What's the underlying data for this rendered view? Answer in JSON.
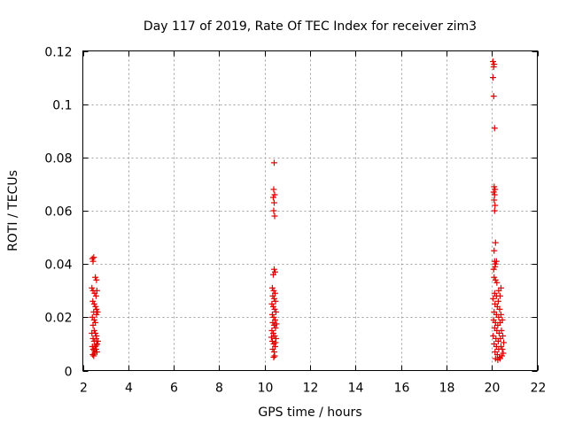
{
  "chart_data": {
    "type": "scatter",
    "title": "Day 117 of 2019, Rate Of TEC Index for receiver zim3",
    "xlabel": "GPS time / hours",
    "ylabel": "ROTI / TECUs",
    "xlim": [
      2,
      22
    ],
    "ylim": [
      0,
      0.12
    ],
    "xticks": [
      2,
      4,
      6,
      8,
      10,
      12,
      14,
      16,
      18,
      20,
      22
    ],
    "yticks": [
      0,
      0.02,
      0.04,
      0.06,
      0.08,
      0.1,
      0.12
    ],
    "xtick_labels": [
      "2",
      "4",
      "6",
      "8",
      "10",
      "12",
      "14",
      "16",
      "18",
      "20",
      "22"
    ],
    "ytick_labels": [
      "0",
      "0.02",
      "0.04",
      "0.06",
      "0.08",
      "0.1",
      "0.12"
    ],
    "grid": true,
    "marker": "+",
    "color": "#e00000",
    "series": [
      {
        "name": "ROTI",
        "points": [
          [
            2.42,
            0.042
          ],
          [
            2.45,
            0.041
          ],
          [
            2.48,
            0.0425
          ],
          [
            2.55,
            0.035
          ],
          [
            2.6,
            0.034
          ],
          [
            2.4,
            0.031
          ],
          [
            2.45,
            0.03
          ],
          [
            2.52,
            0.029
          ],
          [
            2.58,
            0.028
          ],
          [
            2.62,
            0.03
          ],
          [
            2.44,
            0.026
          ],
          [
            2.5,
            0.025
          ],
          [
            2.56,
            0.024
          ],
          [
            2.6,
            0.023
          ],
          [
            2.48,
            0.022
          ],
          [
            2.42,
            0.02
          ],
          [
            2.5,
            0.019
          ],
          [
            2.55,
            0.018
          ],
          [
            2.6,
            0.021
          ],
          [
            2.65,
            0.022
          ],
          [
            2.45,
            0.017
          ],
          [
            2.5,
            0.015
          ],
          [
            2.55,
            0.014
          ],
          [
            2.6,
            0.013
          ],
          [
            2.4,
            0.014
          ],
          [
            2.45,
            0.012
          ],
          [
            2.5,
            0.011
          ],
          [
            2.58,
            0.012
          ],
          [
            2.62,
            0.01
          ],
          [
            2.66,
            0.011
          ],
          [
            2.42,
            0.009
          ],
          [
            2.46,
            0.008
          ],
          [
            2.5,
            0.0075
          ],
          [
            2.54,
            0.009
          ],
          [
            2.58,
            0.008
          ],
          [
            2.62,
            0.007
          ],
          [
            2.44,
            0.006
          ],
          [
            2.48,
            0.0055
          ],
          [
            2.52,
            0.0065
          ],
          [
            2.6,
            0.0095
          ],
          [
            10.42,
            0.078
          ],
          [
            10.4,
            0.068
          ],
          [
            10.44,
            0.066
          ],
          [
            10.38,
            0.065
          ],
          [
            10.42,
            0.063
          ],
          [
            10.4,
            0.06
          ],
          [
            10.44,
            0.058
          ],
          [
            10.42,
            0.038
          ],
          [
            10.46,
            0.037
          ],
          [
            10.38,
            0.036
          ],
          [
            10.34,
            0.031
          ],
          [
            10.4,
            0.03
          ],
          [
            10.46,
            0.029
          ],
          [
            10.36,
            0.028
          ],
          [
            10.42,
            0.027
          ],
          [
            10.48,
            0.026
          ],
          [
            10.32,
            0.025
          ],
          [
            10.38,
            0.024
          ],
          [
            10.44,
            0.023
          ],
          [
            10.5,
            0.022
          ],
          [
            10.34,
            0.021
          ],
          [
            10.4,
            0.02
          ],
          [
            10.46,
            0.019
          ],
          [
            10.36,
            0.018
          ],
          [
            10.42,
            0.017
          ],
          [
            10.48,
            0.016
          ],
          [
            10.32,
            0.015
          ],
          [
            10.38,
            0.014
          ],
          [
            10.44,
            0.013
          ],
          [
            10.5,
            0.012
          ],
          [
            10.34,
            0.011
          ],
          [
            10.4,
            0.01
          ],
          [
            10.46,
            0.009
          ],
          [
            10.36,
            0.008
          ],
          [
            10.42,
            0.007
          ],
          [
            10.44,
            0.0055
          ],
          [
            10.4,
            0.005
          ],
          [
            10.48,
            0.0105
          ],
          [
            10.3,
            0.0125
          ],
          [
            10.52,
            0.0175
          ],
          [
            20.05,
            0.116
          ],
          [
            20.1,
            0.115
          ],
          [
            20.08,
            0.114
          ],
          [
            20.05,
            0.11
          ],
          [
            20.08,
            0.103
          ],
          [
            20.12,
            0.091
          ],
          [
            20.1,
            0.069
          ],
          [
            20.14,
            0.068
          ],
          [
            20.08,
            0.067
          ],
          [
            20.12,
            0.066
          ],
          [
            20.1,
            0.064
          ],
          [
            20.14,
            0.062
          ],
          [
            20.12,
            0.06
          ],
          [
            20.16,
            0.048
          ],
          [
            20.1,
            0.045
          ],
          [
            20.12,
            0.041
          ],
          [
            20.16,
            0.04
          ],
          [
            20.2,
            0.041
          ],
          [
            20.14,
            0.039
          ],
          [
            20.08,
            0.038
          ],
          [
            20.1,
            0.035
          ],
          [
            20.16,
            0.034
          ],
          [
            20.22,
            0.033
          ],
          [
            20.4,
            0.031
          ],
          [
            20.3,
            0.03
          ],
          [
            20.12,
            0.029
          ],
          [
            20.2,
            0.028
          ],
          [
            20.36,
            0.028
          ],
          [
            20.06,
            0.027
          ],
          [
            20.28,
            0.026
          ],
          [
            20.14,
            0.025
          ],
          [
            20.24,
            0.024
          ],
          [
            20.34,
            0.023
          ],
          [
            20.1,
            0.022
          ],
          [
            20.2,
            0.021
          ],
          [
            20.3,
            0.02
          ],
          [
            20.4,
            0.021
          ],
          [
            20.08,
            0.019
          ],
          [
            20.16,
            0.018
          ],
          [
            20.26,
            0.017
          ],
          [
            20.36,
            0.018
          ],
          [
            20.46,
            0.019
          ],
          [
            20.12,
            0.016
          ],
          [
            20.22,
            0.015
          ],
          [
            20.32,
            0.014
          ],
          [
            20.42,
            0.015
          ],
          [
            20.06,
            0.013
          ],
          [
            20.18,
            0.012
          ],
          [
            20.28,
            0.011
          ],
          [
            20.38,
            0.012
          ],
          [
            20.48,
            0.013
          ],
          [
            20.1,
            0.01
          ],
          [
            20.2,
            0.009
          ],
          [
            20.3,
            0.008
          ],
          [
            20.4,
            0.009
          ],
          [
            20.14,
            0.007
          ],
          [
            20.24,
            0.006
          ],
          [
            20.34,
            0.005
          ],
          [
            20.44,
            0.0055
          ],
          [
            20.5,
            0.0065
          ],
          [
            20.16,
            0.0045
          ],
          [
            20.26,
            0.004
          ],
          [
            20.36,
            0.0045
          ],
          [
            20.46,
            0.008
          ],
          [
            20.52,
            0.0105
          ]
        ]
      }
    ]
  }
}
